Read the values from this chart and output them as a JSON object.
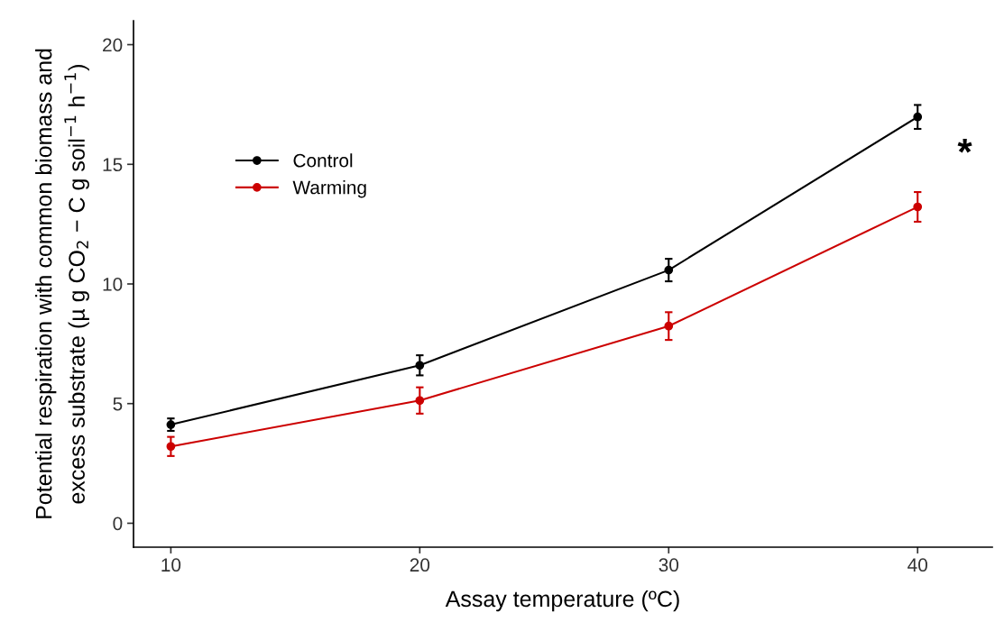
{
  "chart_data": {
    "type": "line",
    "xlabel": "Assay temperature (ºC)",
    "ylabel": "Potential respiration with common biomass and\nexcess substrate (µ g CO$_{2}$ − C g soil$^{−1}$ h$^{−1}$)",
    "x": [
      10,
      20,
      30,
      40
    ],
    "series": [
      {
        "name": "Control",
        "color": "#000000",
        "values": [
          4.12,
          6.6,
          10.58,
          16.98
        ],
        "errors": [
          0.26,
          0.42,
          0.47,
          0.5
        ]
      },
      {
        "name": "Warming",
        "color": "#cc0000",
        "values": [
          3.21,
          5.13,
          8.24,
          13.22
        ],
        "errors": [
          0.4,
          0.55,
          0.58,
          0.62
        ]
      }
    ],
    "xlim": [
      8.5,
      43
    ],
    "ylim": [
      -1,
      21
    ],
    "xticks": [
      10,
      20,
      30,
      40
    ],
    "yticks": [
      0,
      5,
      10,
      15,
      20
    ],
    "annotations": [
      "*"
    ],
    "legend": "top left",
    "marker": "circle",
    "line_style": "solid",
    "grid": false
  }
}
